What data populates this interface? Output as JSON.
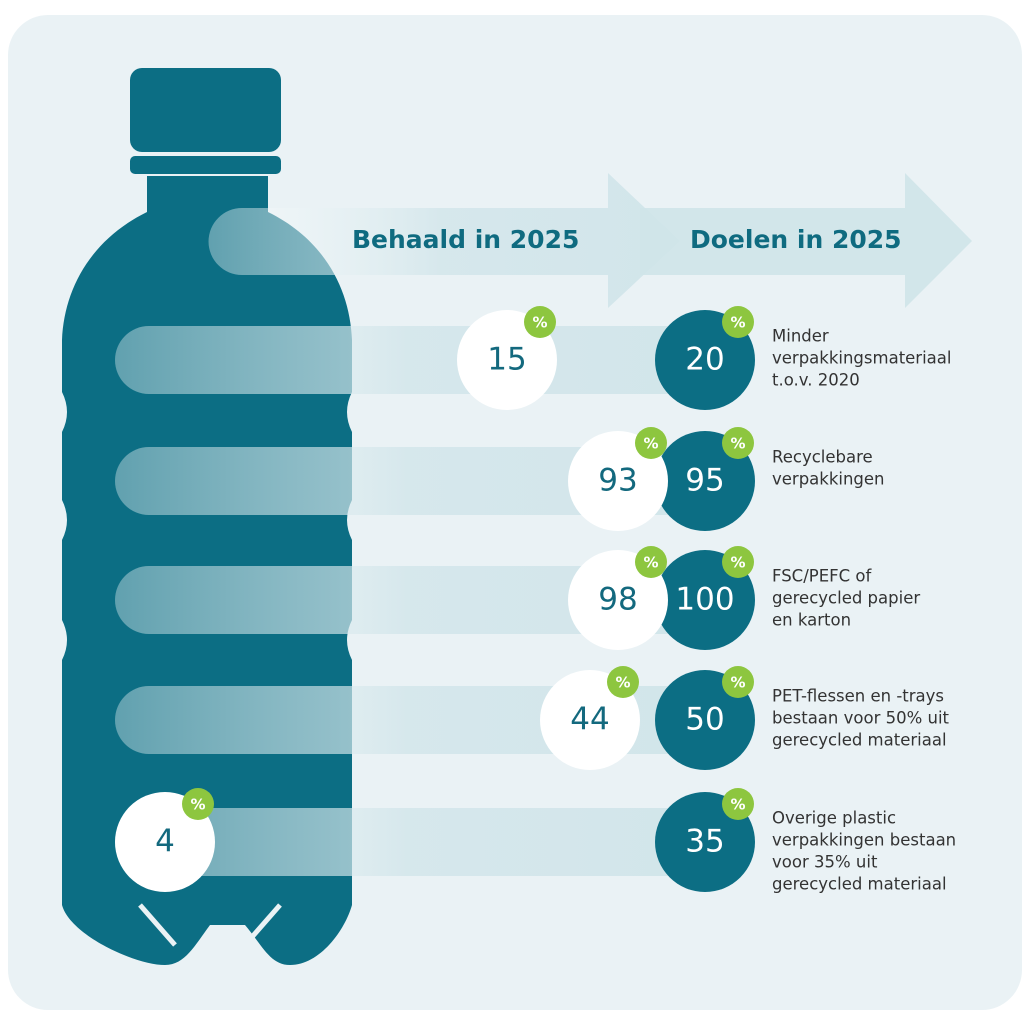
{
  "header": {
    "achieved_label": "Behaald in 2025",
    "target_label": "Doelen in 2025"
  },
  "percent_sign": "%",
  "rows": [
    {
      "achieved": 15,
      "target": 20,
      "description": [
        "Minder",
        "verpakkingsmateriaal",
        "t.o.v. 2020"
      ]
    },
    {
      "achieved": 93,
      "target": 95,
      "description": [
        "Recyclebare",
        "verpakkingen"
      ]
    },
    {
      "achieved": 98,
      "target": 100,
      "description": [
        "FSC/PEFC of",
        "gerecycled papier",
        "en karton"
      ]
    },
    {
      "achieved": 44,
      "target": 50,
      "description": [
        "PET-flessen en -trays",
        "bestaan voor 50% uit",
        "gerecycled materiaal"
      ]
    },
    {
      "achieved": 4,
      "target": 35,
      "description": [
        "Overige plastic",
        "verpakkingen bestaan",
        "voor 35% uit",
        "gerecycled materiaal"
      ]
    }
  ]
}
